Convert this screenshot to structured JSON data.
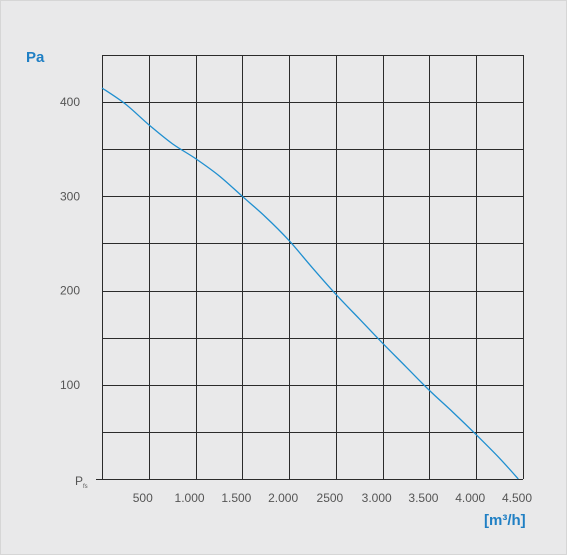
{
  "chart_data": {
    "type": "line",
    "title": "",
    "ylabel": "Pa",
    "xlabel": "[m³/h]",
    "xlim": [
      0,
      4500
    ],
    "ylim": [
      0,
      400
    ],
    "x_tick_values": [
      500,
      1000,
      1500,
      2000,
      2500,
      3000,
      3500,
      4000,
      4500
    ],
    "x_tick_labels": [
      "500",
      "1.000",
      "1.500",
      "2.000",
      "2500",
      "3.000",
      "3.500",
      "4.000",
      "4.500"
    ],
    "y_tick_values": [
      100,
      200,
      300,
      400
    ],
    "y_tick_labels": [
      "100",
      "200",
      "300",
      "400"
    ],
    "y_origin_label": "P",
    "y_origin_label_sub": "fs",
    "grid": true,
    "series": [
      {
        "x": [
          0,
          250,
          500,
          750,
          1000,
          1250,
          1500,
          1750,
          2000,
          2250,
          2500,
          2750,
          3000,
          3250,
          3500,
          3750,
          4000,
          4250,
          4450
        ],
        "values": [
          415,
          398,
          376,
          356,
          340,
          322,
          300,
          278,
          253,
          224,
          196,
          170,
          144,
          119,
          94,
          71,
          47,
          22,
          0
        ]
      }
    ]
  },
  "colors": {
    "background": "#e9e9ea",
    "grid": "#2b2b2b",
    "curve": "#1f8fd0",
    "accent": "#1f7fc4",
    "tick_text": "#555555"
  }
}
